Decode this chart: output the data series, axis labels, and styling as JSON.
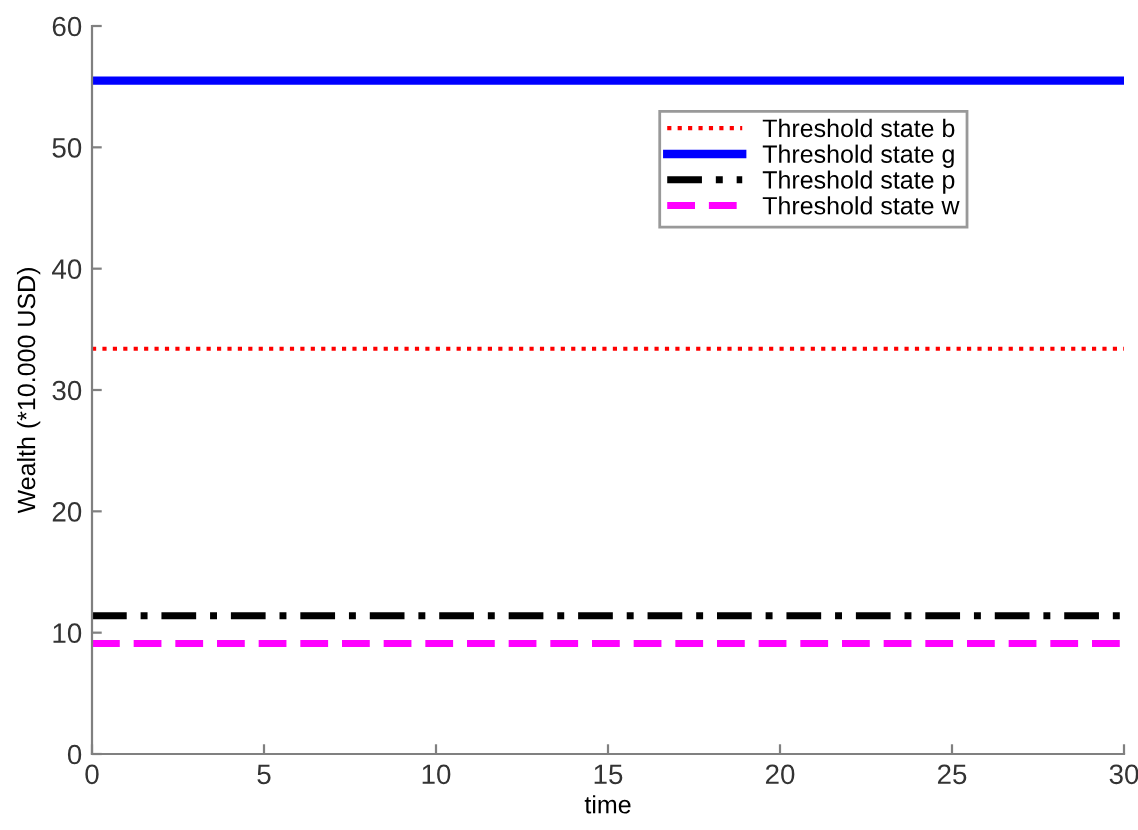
{
  "chart_data": {
    "type": "line",
    "xlabel": "time",
    "ylabel": "Wealth (*10.000 USD)",
    "x": [
      0,
      30
    ],
    "series": [
      {
        "name": "Threshold state b",
        "color": "#ff0000",
        "values": [
          33.4,
          33.4
        ],
        "line_style": "dotted"
      },
      {
        "name": "Threshold state g",
        "color": "#0000ff",
        "values": [
          55.5,
          55.5
        ],
        "line_style": "solid"
      },
      {
        "name": "Threshold state p",
        "color": "#000000",
        "values": [
          11.4,
          11.4
        ],
        "line_style": "dashdot"
      },
      {
        "name": "Threshold state w",
        "color": "#ff00ff",
        "values": [
          9.1,
          9.1
        ],
        "line_style": "dashed"
      }
    ],
    "xlim": [
      0,
      30
    ],
    "xticks": [
      0,
      5,
      10,
      15,
      20,
      25,
      30
    ],
    "ylim": [
      0,
      60
    ],
    "yticks": [
      0,
      10,
      20,
      30,
      40,
      50,
      60
    ],
    "grid": false,
    "legend": "top right",
    "marker": "none"
  }
}
